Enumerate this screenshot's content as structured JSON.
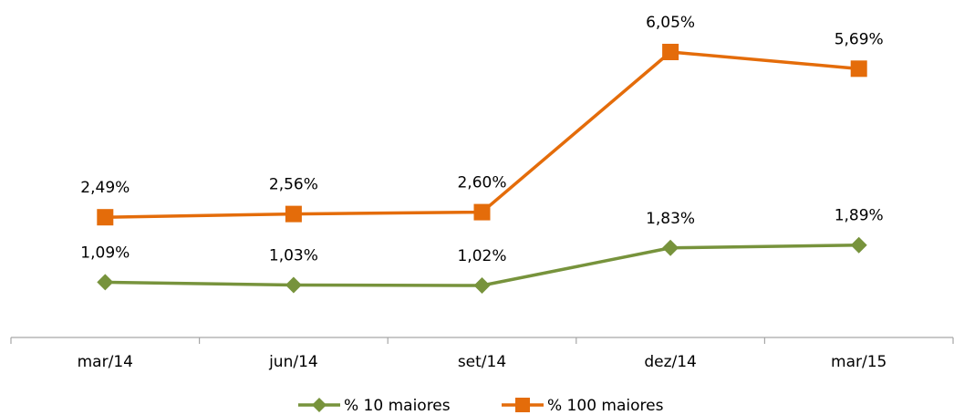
{
  "chart_data": {
    "type": "line",
    "categories": [
      "mar/14",
      "jun/14",
      "set/14",
      "dez/14",
      "mar/15"
    ],
    "series": [
      {
        "name": "% 10 maiores",
        "values": [
          1.09,
          1.03,
          1.02,
          1.83,
          1.89
        ],
        "labels": [
          "1,09%",
          "1,03%",
          "1,02%",
          "1,83%",
          "1,89%"
        ],
        "color": "#77933C",
        "marker": "diamond"
      },
      {
        "name": "% 100 maiores",
        "values": [
          2.49,
          2.56,
          2.6,
          6.05,
          5.69
        ],
        "labels": [
          "2,49%",
          "2,56%",
          "2,60%",
          "6,05%",
          "5,69%"
        ],
        "color": "#E46C0A",
        "marker": "square"
      }
    ],
    "ylim": [
      -0.5,
      6.5
    ],
    "axis_color": "#A6A6A6",
    "grid": false,
    "legend_position": "bottom"
  }
}
